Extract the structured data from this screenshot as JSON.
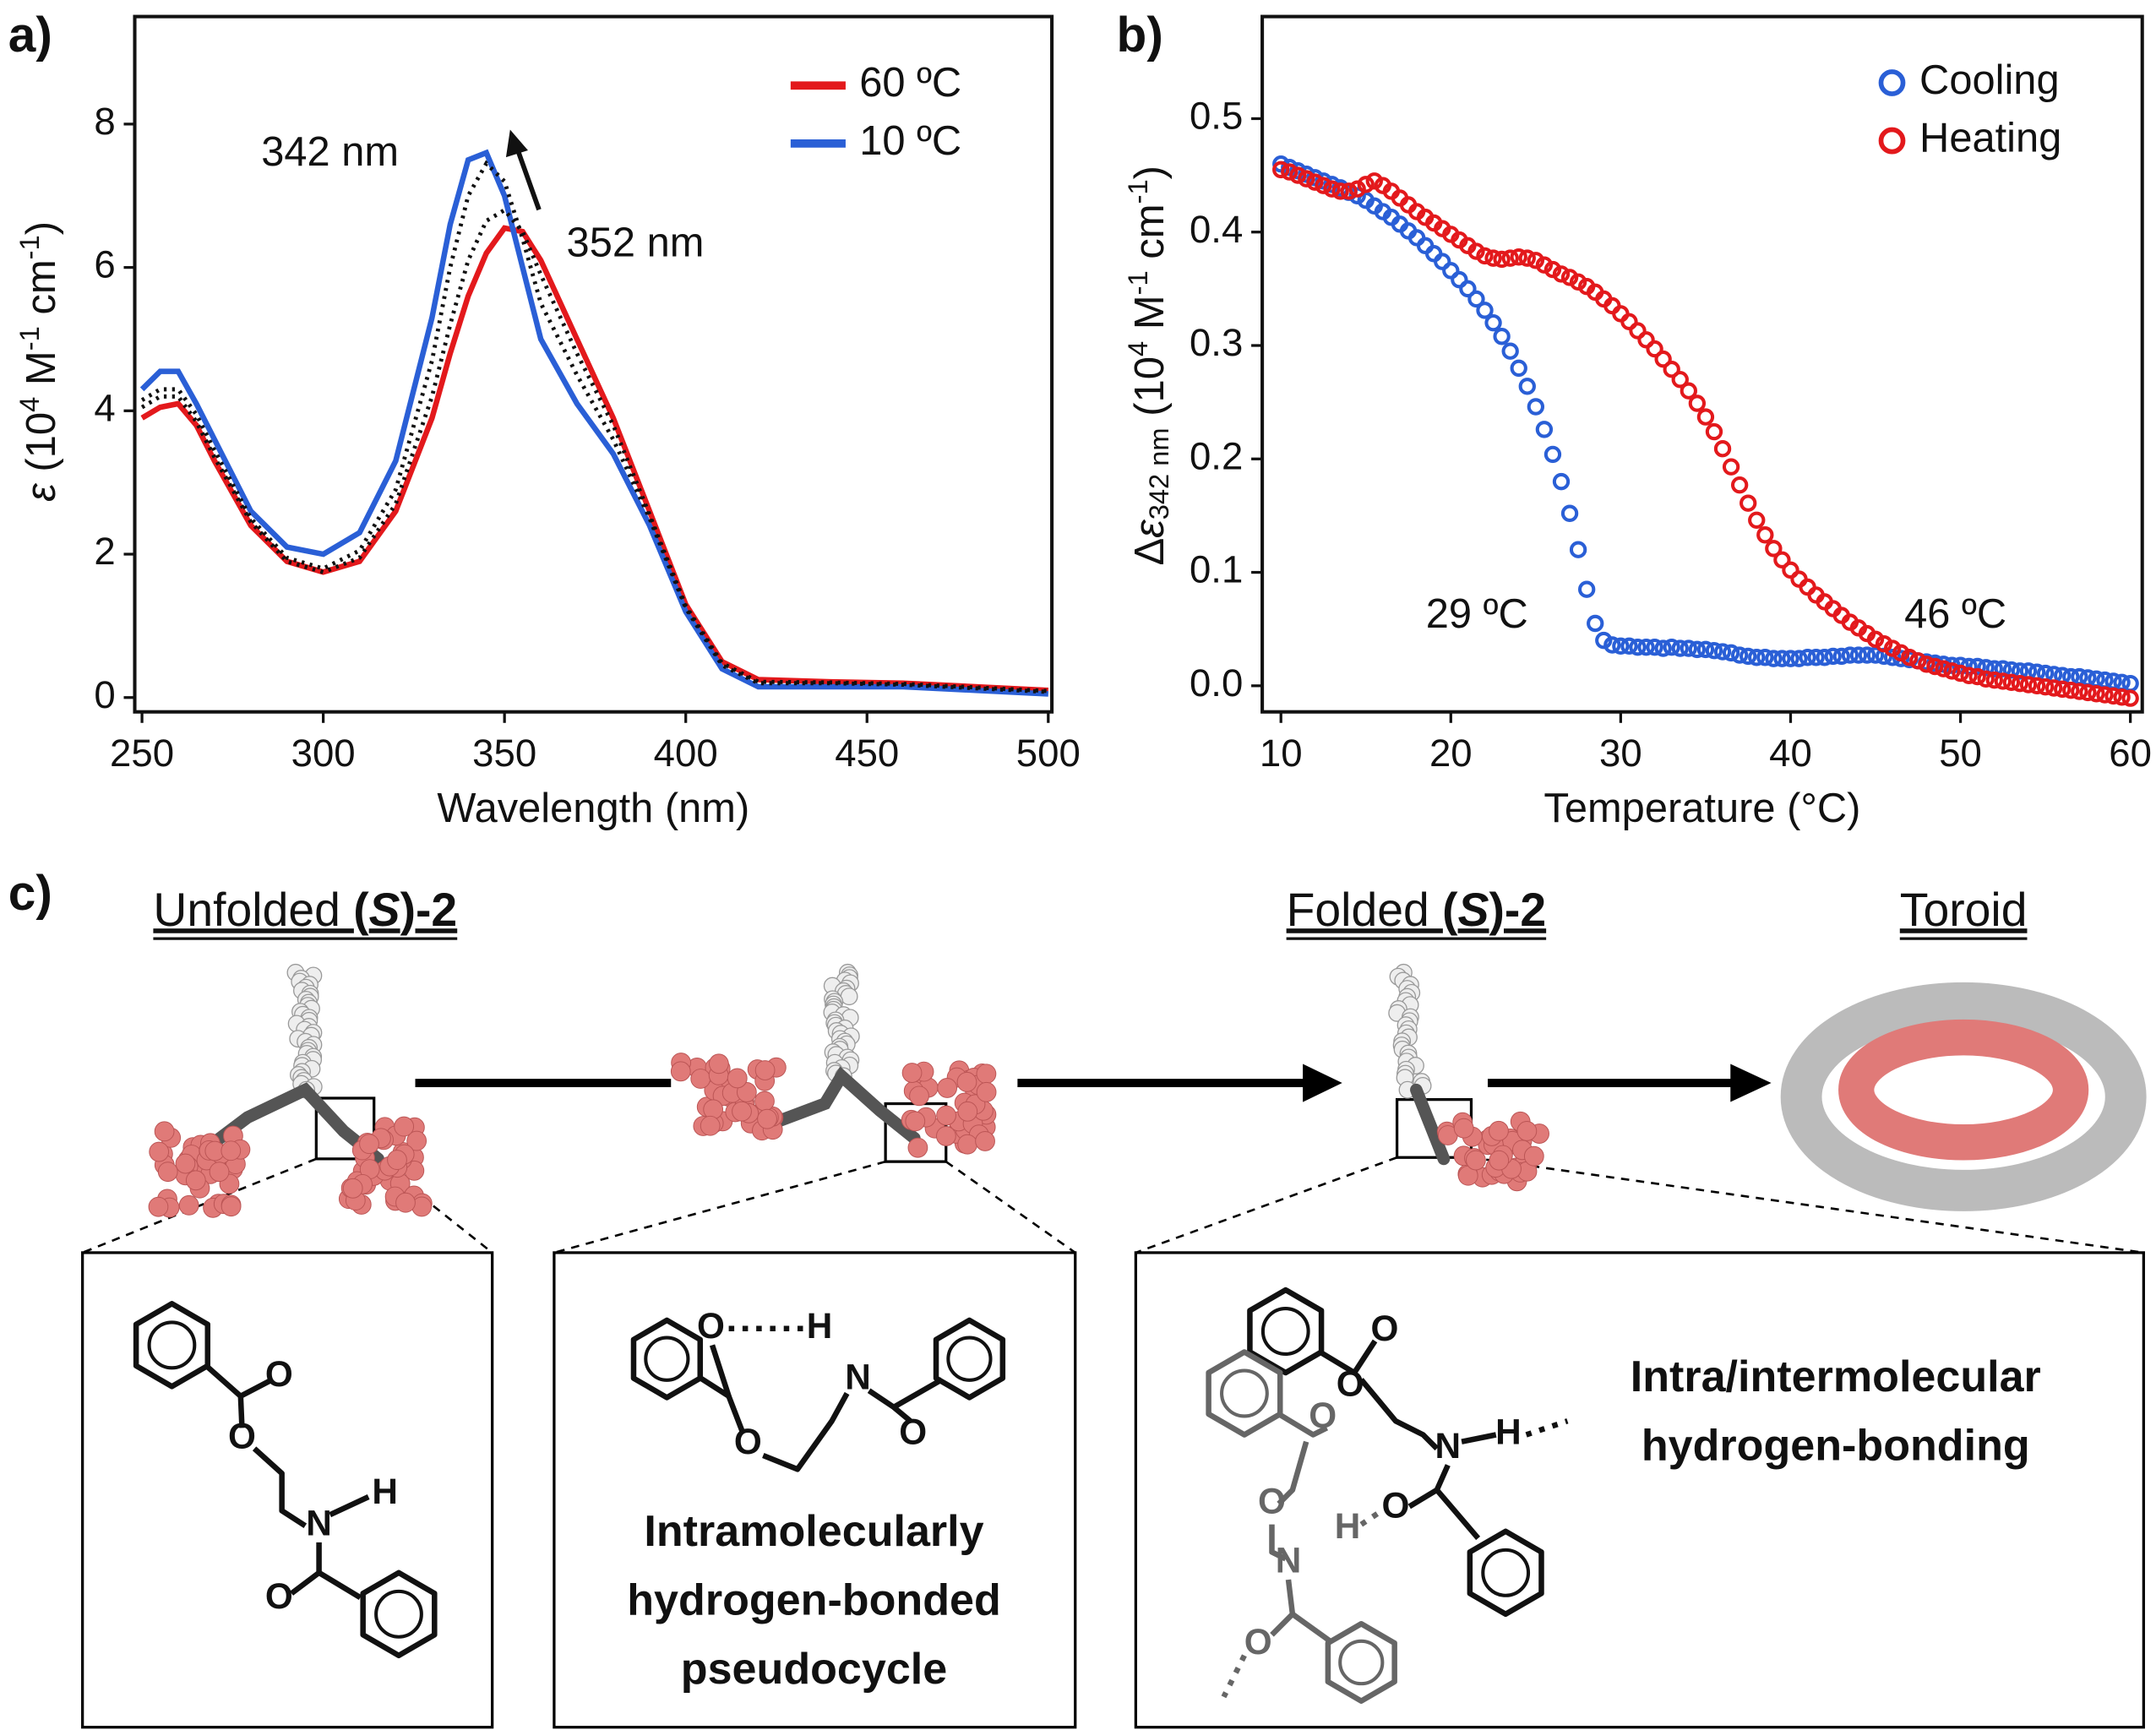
{
  "chart_data": [
    {
      "type": "line",
      "panel": "a)",
      "xlabel": "Wavelength (nm)",
      "ylabel_parts": [
        "ε",
        " (10",
        "4",
        " M",
        "-1",
        " cm",
        "-1",
        ")"
      ],
      "x": [
        250,
        255,
        260,
        265,
        270,
        280,
        290,
        300,
        310,
        320,
        330,
        335,
        340,
        345,
        350,
        355,
        360,
        370,
        380,
        390,
        400,
        410,
        420,
        440,
        460,
        480,
        500
      ],
      "series": [
        {
          "name": "60 ºC",
          "color": "#e3191c",
          "values": [
            3.9,
            4.05,
            4.1,
            3.8,
            3.3,
            2.4,
            1.9,
            1.75,
            1.9,
            2.6,
            3.9,
            4.8,
            5.6,
            6.2,
            6.55,
            6.5,
            6.1,
            5.0,
            3.9,
            2.6,
            1.3,
            0.5,
            0.25,
            0.22,
            0.2,
            0.15,
            0.1
          ]
        },
        {
          "name": "10 ºC",
          "color": "#2a5fd6",
          "values": [
            4.3,
            4.55,
            4.55,
            4.1,
            3.6,
            2.6,
            2.1,
            2.0,
            2.3,
            3.3,
            5.3,
            6.6,
            7.5,
            7.6,
            7.0,
            6.0,
            5.0,
            4.1,
            3.4,
            2.4,
            1.2,
            0.4,
            0.15,
            0.15,
            0.15,
            0.1,
            0.05
          ]
        },
        {
          "color": "#111111",
          "style": "dotted",
          "values": [
            4.15,
            4.3,
            4.3,
            3.95,
            3.45,
            2.5,
            1.95,
            1.8,
            2.05,
            2.9,
            4.7,
            6.0,
            7.0,
            7.45,
            7.2,
            6.4,
            5.5,
            4.5,
            3.6,
            2.5,
            1.25,
            0.45,
            0.2,
            0.2,
            0.18,
            0.13,
            0.08
          ]
        },
        {
          "color": "#111111",
          "style": "dotted",
          "values": [
            4.05,
            4.2,
            4.2,
            3.85,
            3.35,
            2.45,
            1.9,
            1.75,
            1.95,
            2.7,
            4.2,
            5.2,
            6.1,
            6.65,
            6.8,
            6.5,
            5.9,
            4.8,
            3.8,
            2.55,
            1.28,
            0.48,
            0.22,
            0.21,
            0.19,
            0.14,
            0.09
          ]
        }
      ],
      "xlim": [
        248,
        501
      ],
      "ylim": [
        -0.2,
        9.5
      ],
      "xticks": [
        250,
        300,
        350,
        400,
        450,
        500
      ],
      "yticks": [
        0,
        2,
        4,
        6,
        8
      ],
      "annotations": [
        "342 nm",
        "352 nm"
      ],
      "legend": "upper right"
    },
    {
      "type": "scatter",
      "panel": "b)",
      "xlabel": "Temperature (°C)",
      "ylabel_parts": [
        "Δ",
        "ε",
        "342 nm",
        " (10",
        "4",
        " M",
        "-1",
        " cm",
        "-1",
        ")"
      ],
      "x": [
        10,
        10.5,
        11,
        11.5,
        12,
        12.5,
        13,
        13.5,
        14,
        14.5,
        15,
        15.5,
        16,
        16.5,
        17,
        17.5,
        18,
        18.5,
        19,
        19.5,
        20,
        20.5,
        21,
        21.5,
        22,
        22.5,
        23,
        23.5,
        24,
        24.5,
        25,
        25.5,
        26,
        26.5,
        27,
        27.5,
        28,
        28.5,
        29,
        29.5,
        30,
        30.5,
        31,
        31.5,
        32,
        32.5,
        33,
        33.5,
        34,
        34.5,
        35,
        35.5,
        36,
        36.5,
        37,
        37.5,
        38,
        38.5,
        39,
        39.5,
        40,
        40.5,
        41,
        41.5,
        42,
        42.5,
        43,
        43.5,
        44,
        44.5,
        45,
        45.5,
        46,
        46.5,
        47,
        47.5,
        48,
        48.5,
        49,
        49.5,
        50,
        50.5,
        51,
        51.5,
        52,
        52.5,
        53,
        53.5,
        54,
        54.5,
        55,
        55.5,
        56,
        56.5,
        57,
        57.5,
        58,
        58.5,
        59,
        59.5,
        60
      ],
      "series": [
        {
          "name": "Cooling",
          "color": "#2a5fd6",
          "values": [
            0.46,
            0.457,
            0.454,
            0.451,
            0.448,
            0.445,
            0.442,
            0.439,
            0.435,
            0.432,
            0.428,
            0.423,
            0.418,
            0.413,
            0.407,
            0.401,
            0.395,
            0.388,
            0.381,
            0.374,
            0.366,
            0.358,
            0.35,
            0.341,
            0.331,
            0.32,
            0.308,
            0.295,
            0.28,
            0.264,
            0.246,
            0.226,
            0.204,
            0.18,
            0.152,
            0.12,
            0.085,
            0.055,
            0.04,
            0.036,
            0.035,
            0.035,
            0.034,
            0.034,
            0.034,
            0.033,
            0.034,
            0.033,
            0.033,
            0.032,
            0.032,
            0.031,
            0.03,
            0.029,
            0.027,
            0.026,
            0.025,
            0.025,
            0.024,
            0.024,
            0.024,
            0.024,
            0.025,
            0.025,
            0.025,
            0.026,
            0.026,
            0.027,
            0.027,
            0.027,
            0.027,
            0.026,
            0.025,
            0.024,
            0.023,
            0.022,
            0.021,
            0.02,
            0.019,
            0.018,
            0.018,
            0.017,
            0.017,
            0.016,
            0.015,
            0.015,
            0.014,
            0.013,
            0.013,
            0.012,
            0.011,
            0.01,
            0.009,
            0.008,
            0.008,
            0.007,
            0.006,
            0.005,
            0.004,
            0.003,
            0.002
          ]
        },
        {
          "name": "Heating",
          "color": "#e3191c",
          "values": [
            0.455,
            0.453,
            0.45,
            0.447,
            0.444,
            0.441,
            0.438,
            0.436,
            0.436,
            0.438,
            0.442,
            0.445,
            0.441,
            0.436,
            0.43,
            0.424,
            0.418,
            0.413,
            0.408,
            0.403,
            0.398,
            0.393,
            0.388,
            0.383,
            0.379,
            0.377,
            0.376,
            0.377,
            0.378,
            0.377,
            0.375,
            0.371,
            0.367,
            0.363,
            0.36,
            0.356,
            0.352,
            0.347,
            0.341,
            0.335,
            0.328,
            0.321,
            0.313,
            0.305,
            0.297,
            0.288,
            0.279,
            0.27,
            0.26,
            0.249,
            0.237,
            0.224,
            0.209,
            0.193,
            0.177,
            0.161,
            0.146,
            0.133,
            0.121,
            0.111,
            0.102,
            0.094,
            0.087,
            0.08,
            0.074,
            0.068,
            0.062,
            0.056,
            0.051,
            0.046,
            0.041,
            0.037,
            0.033,
            0.029,
            0.025,
            0.022,
            0.019,
            0.017,
            0.015,
            0.013,
            0.011,
            0.009,
            0.008,
            0.006,
            0.005,
            0.004,
            0.003,
            0.002,
            0.001,
            0.0,
            -0.001,
            -0.002,
            -0.003,
            -0.004,
            -0.005,
            -0.006,
            -0.007,
            -0.008,
            -0.009,
            -0.01,
            -0.011
          ]
        }
      ],
      "xlim": [
        8.9,
        60.7
      ],
      "ylim": [
        -0.023,
        0.59
      ],
      "xticks": [
        10,
        20,
        30,
        40,
        50,
        60
      ],
      "yticks": [
        {
          "value": 0,
          "label": "0.0"
        },
        0.1,
        0.2,
        0.3,
        0.4,
        0.5
      ],
      "annotations": [
        "29 ºC",
        "46 ºC"
      ],
      "legend": "upper right"
    }
  ],
  "panel_c": {
    "label": "c)",
    "stages": [
      {
        "parts": [
          "Unfolded ",
          "(",
          "S",
          ")-2"
        ]
      },
      {
        "parts": [
          "Folded ",
          "(",
          "S",
          ")-2"
        ]
      },
      {
        "parts": [
          "Toroid"
        ]
      }
    ],
    "boxes": [
      {
        "atoms": [
          "O",
          "O",
          "N",
          "H",
          "O"
        ]
      },
      {
        "atoms": [
          "O",
          "H",
          "N",
          "O",
          "O"
        ],
        "caption": [
          "Intramolecularly",
          "hydrogen-bonded",
          "pseudocycle"
        ]
      },
      {
        "atoms": [
          "O",
          "O",
          "N",
          "H",
          "O",
          "O",
          "H",
          "O",
          "N",
          "O"
        ],
        "caption": [
          "Intra/intermolecular",
          "hydrogen-bonding"
        ]
      }
    ]
  }
}
